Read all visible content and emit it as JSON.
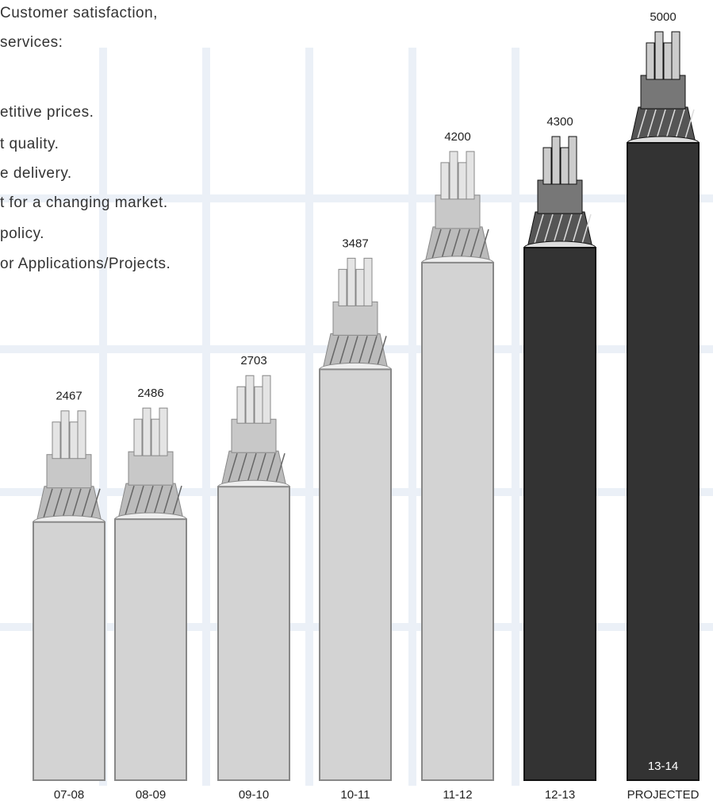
{
  "intro_lines": [
    "Customer    satisfaction,",
    "services:",
    "etitive prices.",
    "t quality.",
    "e delivery.",
    "t for a changing market.",
    "policy.",
    "or Applications/Projects."
  ],
  "chart_data": {
    "type": "bar",
    "categories": [
      "07-08",
      "08-09",
      "09-10",
      "10-11",
      "11-12",
      "12-13",
      "13-14"
    ],
    "values": [
      2467,
      2486,
      2703,
      3487,
      4200,
      4300,
      5000
    ],
    "colors": [
      "#d3d3d3",
      "#d3d3d3",
      "#d3d3d3",
      "#d3d3d3",
      "#d3d3d3",
      "#333333",
      "#333333"
    ],
    "annotation": "PROJECTED",
    "ylim": [
      0,
      5000
    ]
  }
}
